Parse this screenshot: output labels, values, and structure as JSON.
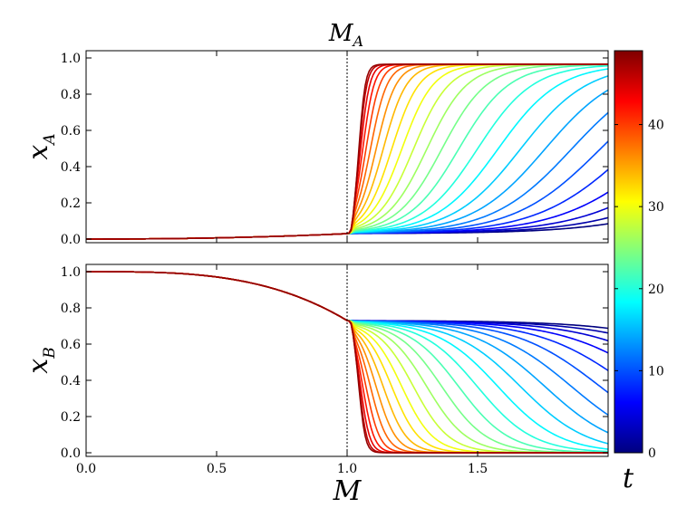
{
  "chart_data": [
    {
      "type": "line",
      "panel": "top",
      "ylabel_main": "x",
      "ylabel_sub": "A",
      "xlim": [
        0.0,
        2.0
      ],
      "ylim": [
        -0.02,
        1.04
      ],
      "yticks": [
        "0.0",
        "0.2",
        "0.4",
        "0.6",
        "0.8",
        "1.0"
      ],
      "yticks_values": [
        0.0,
        0.2,
        0.4,
        0.6,
        0.8,
        1.0
      ],
      "x_ticklabels_shown": false,
      "annotation_main": "M",
      "annotation_sub": "A",
      "annotation_x": 1.0,
      "vline_x": 1.0,
      "vline_style": "dotted",
      "series_param": "t",
      "t_values": [
        0,
        2,
        4,
        6,
        8,
        10,
        12,
        14,
        16,
        18,
        20,
        22,
        24,
        26,
        28,
        30,
        32,
        34,
        36,
        38,
        40,
        42,
        44,
        46,
        48
      ],
      "model": {
        "baseline_at_M0": 0.0,
        "baseline_at_MA": 0.03,
        "plateau": 0.965,
        "transition_start": 1.02,
        "final_steepness": 0.012
      }
    },
    {
      "type": "line",
      "panel": "bottom",
      "xlabel": "M",
      "ylabel_main": "x",
      "ylabel_sub": "B",
      "xlim": [
        0.0,
        2.0
      ],
      "ylim": [
        -0.02,
        1.04
      ],
      "xticks": [
        "0.0",
        "0.5",
        "1.0",
        "1.5"
      ],
      "xticks_values": [
        0.0,
        0.5,
        1.0,
        1.5
      ],
      "yticks": [
        "0.0",
        "0.2",
        "0.4",
        "0.6",
        "0.8",
        "1.0"
      ],
      "yticks_values": [
        0.0,
        0.2,
        0.4,
        0.6,
        0.8,
        1.0
      ],
      "vline_x": 1.0,
      "vline_style": "dotted",
      "series_param": "t",
      "t_values": [
        0,
        2,
        4,
        6,
        8,
        10,
        12,
        14,
        16,
        18,
        20,
        22,
        24,
        26,
        28,
        30,
        32,
        34,
        36,
        38,
        40,
        42,
        44,
        46,
        48
      ],
      "model": {
        "value_at_M0": 1.0,
        "envelope_at_MA": 0.73,
        "floor": 0.0,
        "transition_start": 1.02,
        "final_steepness": 0.012
      }
    }
  ],
  "colorbar": {
    "label": "t",
    "range": [
      0,
      49
    ],
    "ticks": [
      "0",
      "10",
      "20",
      "30",
      "40"
    ],
    "tick_values": [
      0,
      10,
      20,
      30,
      40
    ],
    "colormap": "jet",
    "colors": [
      "#00007f",
      "#0000ff",
      "#007fff",
      "#00ffff",
      "#7fff7f",
      "#ffff00",
      "#ff7f00",
      "#ff0000",
      "#7f0000"
    ]
  },
  "vline_color": "#000000"
}
